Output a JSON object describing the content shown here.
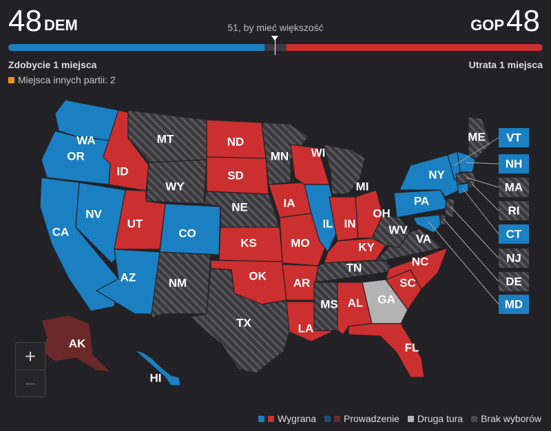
{
  "header": {
    "dem_count": "48",
    "dem_label": "DEM",
    "gop_count": "48",
    "gop_label": "GOP",
    "majority_text": "51, by mieć większość",
    "dem_change": "Zdobycie 1 miejsca",
    "gop_change": "Utrata 1 miejsca",
    "other_seats": "Miejsca innych partii: 2"
  },
  "seats": {
    "total": 100,
    "dem": 48,
    "gop": 48,
    "other": 2
  },
  "colors": {
    "dem_win": "#1a80c2",
    "gop_win": "#cc2f2f",
    "dem_lead": "#1d4f72",
    "gop_lead": "#6b2828",
    "runoff": "#b3b3b3",
    "no_election": "#3a3a3e",
    "other": "#f0931e"
  },
  "legend": {
    "win": "Wygrana",
    "lead": "Prowadzenie",
    "runoff": "Druga tura",
    "no_election": "Brak wyborów"
  },
  "zoom": {
    "in": "+",
    "out": "−"
  },
  "states": {
    "WA": "WA",
    "OR": "OR",
    "CA": "CA",
    "NV": "NV",
    "ID": "ID",
    "MT": "MT",
    "WY": "WY",
    "UT": "UT",
    "CO": "CO",
    "AZ": "AZ",
    "NM": "NM",
    "ND": "ND",
    "SD": "SD",
    "NE": "NE",
    "KS": "KS",
    "OK": "OK",
    "TX": "TX",
    "MN": "MN",
    "IA": "IA",
    "MO": "MO",
    "AR": "AR",
    "LA": "LA",
    "WI": "WI",
    "IL": "IL",
    "MI": "MI",
    "IN": "IN",
    "OH": "OH",
    "KY": "KY",
    "TN": "TN",
    "MS": "MS",
    "AL": "AL",
    "GA": "GA",
    "FL": "FL",
    "SC": "SC",
    "NC": "NC",
    "VA": "VA",
    "WV": "WV",
    "PA": "PA",
    "NY": "NY",
    "ME": "ME",
    "AK": "AK",
    "HI": "HI",
    "VT": "VT",
    "NH": "NH",
    "MA": "MA",
    "RI": "RI",
    "CT": "CT",
    "NJ": "NJ",
    "DE": "DE",
    "MD": "MD"
  },
  "status": {
    "WA": "dem_win",
    "OR": "dem_win",
    "CA": "dem_win",
    "NV": "dem_win",
    "ID": "gop_win",
    "MT": "none",
    "WY": "none",
    "UT": "gop_win",
    "CO": "dem_win",
    "AZ": "dem_win",
    "NM": "none",
    "ND": "gop_win",
    "SD": "gop_win",
    "NE": "none",
    "KS": "gop_win",
    "OK": "gop_win",
    "TX": "none",
    "MN": "none",
    "IA": "gop_win",
    "MO": "gop_win",
    "AR": "gop_win",
    "LA": "gop_win",
    "WI": "gop_win",
    "IL": "dem_win",
    "MI": "none",
    "IN": "gop_win",
    "OH": "gop_win",
    "KY": "gop_win",
    "TN": "none",
    "MS": "none",
    "AL": "gop_win",
    "GA": "runoff",
    "FL": "gop_win",
    "SC": "gop_win",
    "NC": "gop_win",
    "VA": "none",
    "WV": "none",
    "PA": "dem_win",
    "NY": "dem_win",
    "ME": "none",
    "AK": "gop_lead",
    "HI": "dem_win",
    "VT": "dem_win",
    "NH": "dem_win",
    "MA": "none",
    "RI": "none",
    "CT": "dem_win",
    "NJ": "none",
    "DE": "none",
    "MD": "dem_win"
  }
}
